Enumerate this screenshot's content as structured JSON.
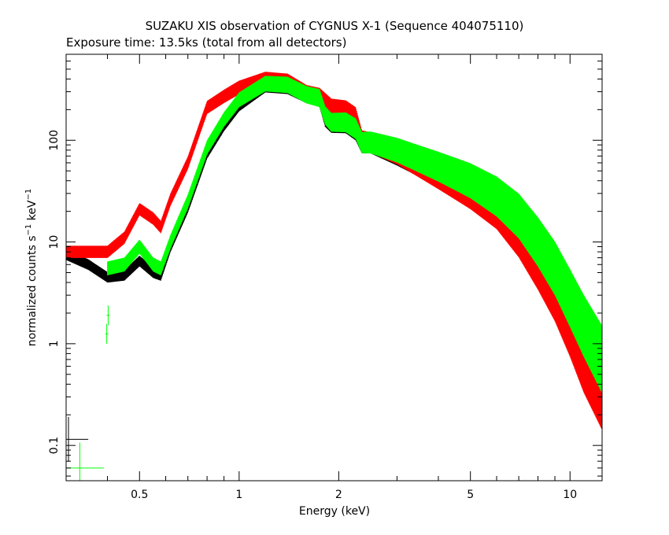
{
  "chart_data": {
    "type": "scatter",
    "title": "SUZAKU XIS observation of CYGNUS X-1 (Sequence 404075110)",
    "subtitle": "Exposure time: 13.5ks (total from all detectors)",
    "xlabel": "Energy (keV)",
    "ylabel_main": "normalized counts s",
    "ylabel_sup1": "−1",
    "ylabel_mid": " keV",
    "ylabel_sup2": "−1",
    "xscale": "log",
    "yscale": "log",
    "xlim": [
      0.3,
      12.5
    ],
    "ylim": [
      0.045,
      700
    ],
    "x_ticks": [
      {
        "value": 0.5,
        "label": "0.5"
      },
      {
        "value": 1,
        "label": "1"
      },
      {
        "value": 2,
        "label": "2"
      },
      {
        "value": 5,
        "label": "5"
      },
      {
        "value": 10,
        "label": "10"
      }
    ],
    "y_ticks": [
      {
        "value": 0.1,
        "label": "0.1"
      },
      {
        "value": 1,
        "label": "1"
      },
      {
        "value": 10,
        "label": "10"
      },
      {
        "value": 100,
        "label": "100"
      }
    ],
    "grid": false,
    "legend": "none",
    "series": [
      {
        "color": "#000000",
        "x": [
          0.3,
          0.35,
          0.4,
          0.45,
          0.5,
          0.55,
          0.58,
          0.62,
          0.7,
          0.8,
          0.9,
          1.0,
          1.2,
          1.4,
          1.6,
          1.75,
          1.82,
          1.9,
          2.1,
          2.25,
          2.35,
          2.5,
          3,
          4,
          5,
          6,
          7,
          8,
          9,
          10,
          11,
          12.5
        ],
        "y": [
          7.5,
          6,
          4.5,
          4.7,
          6.5,
          5,
          4.7,
          9,
          22,
          75,
          140,
          220,
          340,
          330,
          270,
          250,
          160,
          140,
          140,
          120,
          90,
          90,
          70,
          45,
          30,
          20,
          12,
          6,
          3.2,
          1.6,
          0.9,
          0.45
        ],
        "err": 0.08
      },
      {
        "color": "#ff0000",
        "x": [
          0.3,
          0.35,
          0.4,
          0.45,
          0.5,
          0.55,
          0.58,
          0.62,
          0.7,
          0.8,
          0.9,
          1.0,
          1.2,
          1.4,
          1.6,
          1.75,
          1.82,
          1.9,
          2.1,
          2.25,
          2.35,
          2.5,
          3,
          4,
          5,
          6,
          7,
          8,
          9,
          10,
          11,
          12.5
        ],
        "y": [
          8,
          8,
          8,
          11,
          21,
          17,
          14,
          26,
          60,
          210,
          270,
          330,
          400,
          380,
          290,
          270,
          240,
          210,
          200,
          170,
          100,
          95,
          75,
          45,
          30,
          20,
          11,
          5.5,
          2.8,
          1.3,
          0.6,
          0.27
        ],
        "err": 0.1
      },
      {
        "color": "#00ff00",
        "x": [
          0.4,
          0.45,
          0.5,
          0.55,
          0.58,
          0.62,
          0.7,
          0.8,
          0.9,
          1.0,
          1.2,
          1.4,
          1.6,
          1.75,
          1.82,
          1.9,
          2.1,
          2.25,
          2.35,
          2.5,
          3,
          4,
          5,
          6,
          7,
          8,
          9,
          10,
          11,
          12.5
        ],
        "y": [
          5.5,
          6,
          9,
          6,
          5.5,
          10,
          25,
          85,
          160,
          250,
          360,
          350,
          280,
          260,
          175,
          150,
          150,
          130,
          95,
          95,
          80,
          55,
          40,
          28,
          18,
          10,
          5.5,
          2.8,
          1.5,
          0.7
        ],
        "err": 0.12
      }
    ],
    "stray_points": [
      {
        "color": "#00ff00",
        "x": 0.398,
        "y": 1.25
      },
      {
        "color": "#00ff00",
        "x": 0.402,
        "y": 1.9
      }
    ],
    "resolution_markers": [
      {
        "color": "#000000",
        "x": 0.305,
        "y": 0.115,
        "xerr": 0.045,
        "yerr": 0.22
      },
      {
        "color": "#00ff00",
        "x": 0.33,
        "y": 0.06,
        "xerr": 0.06,
        "yerr": 0.25
      }
    ]
  }
}
